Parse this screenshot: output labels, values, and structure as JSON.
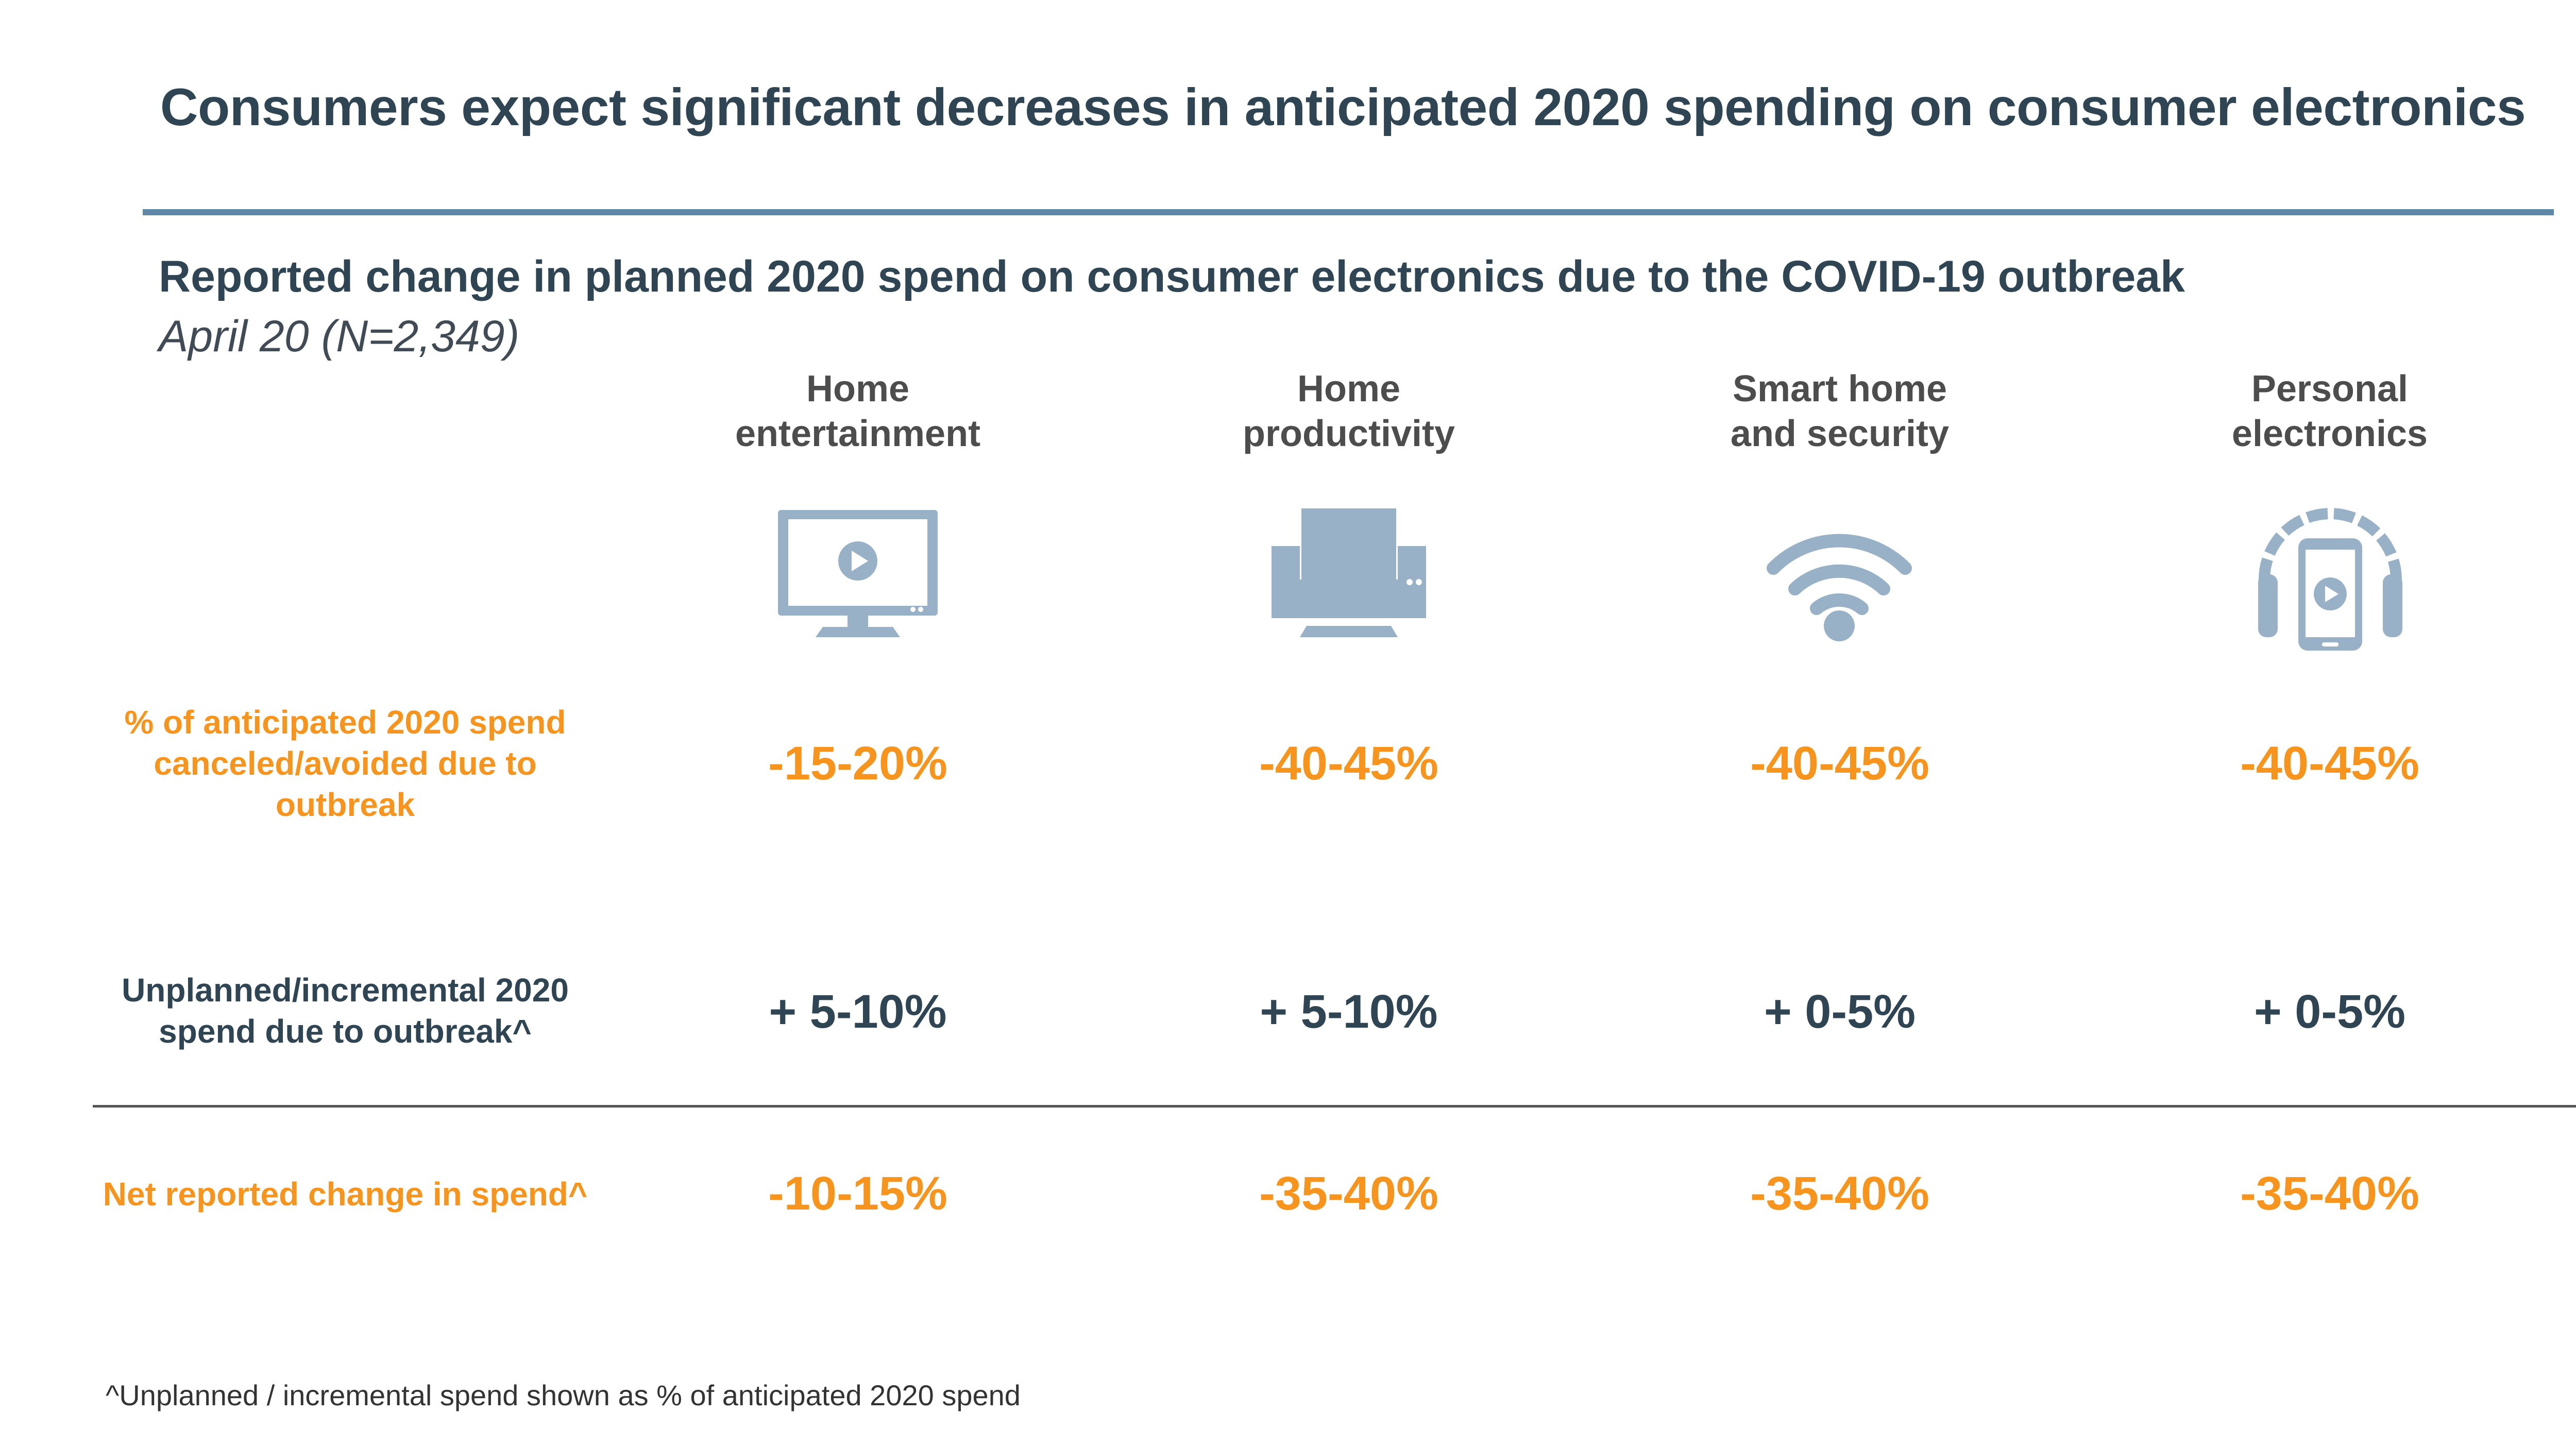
{
  "title": "Consumers expect significant decreases in anticipated 2020 spending on consumer electronics",
  "subtitle": "Reported change in planned 2020 spend on consumer electronics due to the COVID-19 outbreak",
  "subtitle_note": "April 20 (N=2,349)",
  "colors": {
    "title": "#2f4554",
    "accent": "#f7941d",
    "rule": "#5f88a8",
    "icon": "#98b1c6"
  },
  "categories": [
    {
      "line1": "Home",
      "line2": "entertainment",
      "icon": "tv-icon"
    },
    {
      "line1": "Home",
      "line2": "productivity",
      "icon": "printer-icon"
    },
    {
      "line1": "Smart home",
      "line2": "and security",
      "icon": "wifi-icon"
    },
    {
      "line1": "Personal",
      "line2": "electronics",
      "icon": "headphones-phone-icon"
    }
  ],
  "rows": [
    {
      "label_lines": [
        "% of anticipated 2020 spend",
        "canceled/avoided due to",
        "outbreak"
      ],
      "values": [
        "-15-20%",
        "-40-45%",
        "-40-45%",
        "-40-45%"
      ]
    },
    {
      "label_lines": [
        "Unplanned/incremental 2020",
        "spend due to outbreak^"
      ],
      "values": [
        "+ 5-10%",
        "+ 5-10%",
        "+ 0-5%",
        "+ 0-5%"
      ]
    },
    {
      "label_lines": [
        "Net reported change in spend^"
      ],
      "values": [
        "-10-15%",
        "-35-40%",
        "-35-40%",
        "-35-40%"
      ]
    }
  ],
  "footnote": "^Unplanned / incremental spend shown as % of anticipated 2020 spend"
}
